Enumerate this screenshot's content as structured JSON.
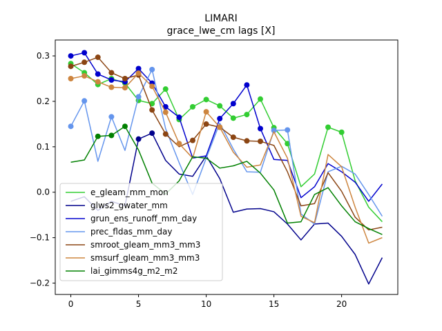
{
  "chart_data": {
    "type": "line",
    "title": "LIMARI",
    "subtitle": "grace_lwe_cm lags [X]",
    "xlabel": "",
    "ylabel": "",
    "xlim": [
      -1.15,
      24.15
    ],
    "ylim": [
      -0.225,
      0.335
    ],
    "xticks": [
      0,
      5,
      10,
      15,
      20
    ],
    "yticks": [
      -0.2,
      -0.1,
      0.0,
      0.1,
      0.2,
      0.3
    ],
    "ytick_labels": [
      "−0.2",
      "−0.1",
      "0.0",
      "0.1",
      "0.2",
      "0.3"
    ],
    "x": [
      0,
      1,
      2,
      3,
      4,
      5,
      6,
      7,
      8,
      9,
      10,
      11,
      12,
      13,
      14,
      15,
      16,
      17,
      18,
      19,
      20,
      21,
      22,
      23
    ],
    "legend_position": "lower-left",
    "series": [
      {
        "name": "e_gleam_mm_mon",
        "color": "#32cd32",
        "values": [
          0.283,
          0.263,
          0.237,
          0.25,
          0.24,
          0.202,
          0.195,
          0.227,
          0.16,
          0.188,
          0.204,
          0.19,
          0.163,
          0.171,
          0.205,
          0.142,
          0.107,
          0.012,
          0.04,
          0.143,
          0.132,
          0.025,
          -0.033,
          -0.065
        ],
        "markers": [
          0,
          1,
          2,
          3,
          4,
          5,
          6,
          7,
          8,
          9,
          10,
          11,
          12,
          13,
          14,
          15,
          16,
          19,
          20
        ]
      },
      {
        "name": "glws2_gwater_mm",
        "color": "#00008b",
        "values": [
          -0.02,
          -0.01,
          -0.04,
          -0.02,
          -0.03,
          0.117,
          0.13,
          0.07,
          0.04,
          0.035,
          0.08,
          0.03,
          -0.044,
          -0.037,
          -0.036,
          -0.043,
          -0.07,
          -0.105,
          -0.07,
          -0.068,
          -0.097,
          -0.137,
          -0.202,
          -0.144
        ],
        "markers": [
          5,
          6
        ]
      },
      {
        "name": "grun_ens_runoff_mm_day",
        "color": "#0000cd",
        "values": [
          0.3,
          0.307,
          0.26,
          0.247,
          0.243,
          0.272,
          0.24,
          0.188,
          0.165,
          0.075,
          0.08,
          0.162,
          0.195,
          0.236,
          0.14,
          0.072,
          0.07,
          -0.012,
          0.012,
          0.063,
          0.045,
          0.022,
          -0.02,
          0.018
        ],
        "markers": [
          0,
          1,
          2,
          3,
          4,
          5,
          6,
          7,
          8,
          11,
          12,
          13,
          14
        ]
      },
      {
        "name": "prec_fldas_mm_day",
        "color": "#6495ed",
        "values": [
          0.145,
          0.201,
          0.068,
          0.166,
          0.092,
          0.21,
          0.27,
          0.14,
          0.065,
          -0.005,
          0.075,
          0.152,
          0.095,
          0.045,
          0.044,
          0.136,
          0.137,
          -0.048,
          -0.07,
          0.045,
          0.057,
          0.04,
          -0.005,
          -0.053
        ],
        "markers": [
          0,
          1,
          3,
          5,
          6,
          15,
          16
        ]
      },
      {
        "name": "smroot_gleam_mm3_mm3",
        "color": "#8b4513",
        "values": [
          0.277,
          0.286,
          0.297,
          0.263,
          0.25,
          0.258,
          0.181,
          0.128,
          0.1,
          0.114,
          0.15,
          0.143,
          0.121,
          0.113,
          0.112,
          0.103,
          0.045,
          -0.03,
          -0.025,
          0.043,
          0.002,
          -0.055,
          -0.083,
          -0.077
        ],
        "markers": [
          0,
          1,
          2,
          3,
          4,
          5,
          6,
          7,
          9,
          10,
          11,
          12,
          13,
          14
        ]
      },
      {
        "name": "smsurf_gleam_mm3_mm3",
        "color": "#cd853f",
        "values": [
          0.25,
          0.256,
          0.243,
          0.231,
          0.23,
          0.262,
          0.233,
          0.176,
          0.107,
          0.075,
          0.177,
          0.143,
          0.088,
          0.055,
          0.06,
          0.133,
          0.075,
          -0.053,
          -0.067,
          0.083,
          0.056,
          -0.033,
          -0.112,
          -0.1
        ],
        "markers": [
          0,
          1,
          2,
          3,
          4,
          5,
          6,
          7,
          8,
          10,
          11
        ]
      },
      {
        "name": "lai_gimms4g_m2_m2",
        "color": "#008000",
        "values": [
          0.066,
          0.071,
          0.123,
          0.125,
          0.145,
          0.093,
          0.02,
          -0.004,
          0.025,
          0.078,
          0.075,
          0.053,
          0.058,
          0.068,
          0.042,
          0.005,
          -0.068,
          -0.065,
          -0.005,
          0.01,
          -0.03,
          -0.065,
          -0.08,
          -0.093
        ],
        "markers": [
          2,
          3,
          4
        ]
      }
    ]
  }
}
